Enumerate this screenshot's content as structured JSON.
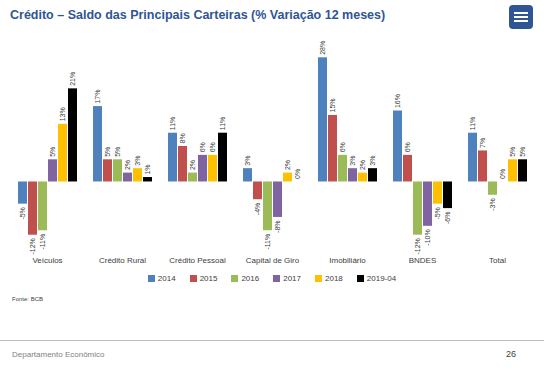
{
  "chart_data": {
    "type": "bar",
    "title": "Crédito – Saldo das Principais Carteiras (% Variação 12 meses)",
    "categories": [
      "Veículos",
      "Crédito Rural",
      "Crédito Pessoal",
      "Capital de Giro",
      "Imobiliário",
      "BNDES",
      "Total"
    ],
    "series": [
      {
        "name": "2014",
        "color": "#4f81bd",
        "values": [
          -5,
          17,
          11,
          3,
          28,
          16,
          11
        ],
        "value_labels": [
          "-5%",
          "17%",
          "11%",
          "3%",
          "28%",
          "16%",
          "11%"
        ]
      },
      {
        "name": "2015",
        "color": "#c0504d",
        "values": [
          -12,
          5,
          8,
          -4,
          15,
          6,
          7
        ],
        "value_labels": [
          "-12%",
          "5%",
          "8%",
          "-4%",
          "15%",
          "6%",
          "7%"
        ]
      },
      {
        "name": "2016",
        "color": "#9bbb59",
        "values": [
          -11,
          5,
          2,
          -11,
          6,
          -12,
          -3
        ],
        "value_labels": [
          "-11%",
          "5%",
          "2%",
          "-11%",
          "6%",
          "-12%",
          "-3%"
        ]
      },
      {
        "name": "2017",
        "color": "#8064a2",
        "values": [
          5,
          2,
          6,
          -8,
          3,
          -10,
          0
        ],
        "value_labels": [
          "5%",
          "2%",
          "6%",
          "-8%",
          "3%",
          "-10%",
          "0%"
        ]
      },
      {
        "name": "2018",
        "color": "#ffc000",
        "values": [
          13,
          3,
          6,
          2,
          2,
          -5,
          5
        ],
        "value_labels": [
          "13%",
          "3%",
          "6%",
          "2%",
          "2%",
          "-5%",
          "5%"
        ]
      },
      {
        "name": "2019-04",
        "color": "#000000",
        "values": [
          21,
          1,
          11,
          0,
          3,
          -6,
          5
        ],
        "value_labels": [
          "21%",
          "1%",
          "11%",
          "0%",
          "3%",
          "-6%",
          "5%"
        ]
      }
    ],
    "ylim": [
      -15,
      31
    ],
    "data_labels": true,
    "tick_labels": "x",
    "legend": "bottom",
    "source": "Fonte: BCB",
    "footer": "Departamento Econômico",
    "page_number": "26"
  }
}
